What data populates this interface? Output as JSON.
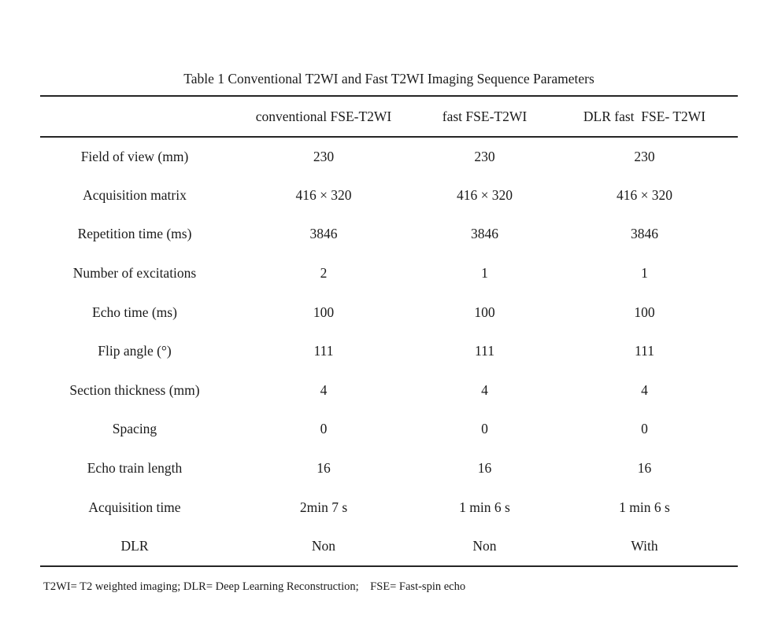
{
  "page": {
    "background": "#ffffff",
    "text_color": "#1b1b1b",
    "rule_color": "#252525"
  },
  "table": {
    "title": "Table 1 Conventional T2WI and Fast T2WI Imaging Sequence Parameters",
    "columns": [
      "",
      "conventional FSE-T2WI",
      "fast FSE-T2WI",
      "DLR fast  FSE- T2WI"
    ],
    "rows": [
      {
        "label": "Field of view (mm)",
        "values": [
          "230",
          "230",
          "230"
        ]
      },
      {
        "label": "Acquisition matrix",
        "values": [
          "416 × 320",
          "416 × 320",
          "416 × 320"
        ]
      },
      {
        "label": "Repetition time (ms)",
        "values": [
          "3846",
          "3846",
          "3846"
        ]
      },
      {
        "label": "Number of excitations",
        "values": [
          "2",
          "1",
          "1"
        ]
      },
      {
        "label": "Echo time (ms)",
        "values": [
          "100",
          "100",
          "100"
        ]
      },
      {
        "label": "Flip angle (°)",
        "values": [
          "111",
          "111",
          "111"
        ]
      },
      {
        "label": "Section thickness (mm)",
        "values": [
          "4",
          "4",
          "4"
        ]
      },
      {
        "label": "Spacing",
        "values": [
          "0",
          "0",
          "0"
        ]
      },
      {
        "label": "Echo train length",
        "values": [
          "16",
          "16",
          "16"
        ]
      },
      {
        "label": "Acquisition time",
        "values": [
          "2min 7 s",
          "1 min 6 s",
          "1 min 6 s"
        ]
      },
      {
        "label": "DLR",
        "values": [
          "Non",
          "Non",
          "With"
        ]
      }
    ],
    "footnote": "T2WI= T2 weighted imaging; DLR= Deep Learning Reconstruction;    FSE= Fast-spin echo"
  }
}
